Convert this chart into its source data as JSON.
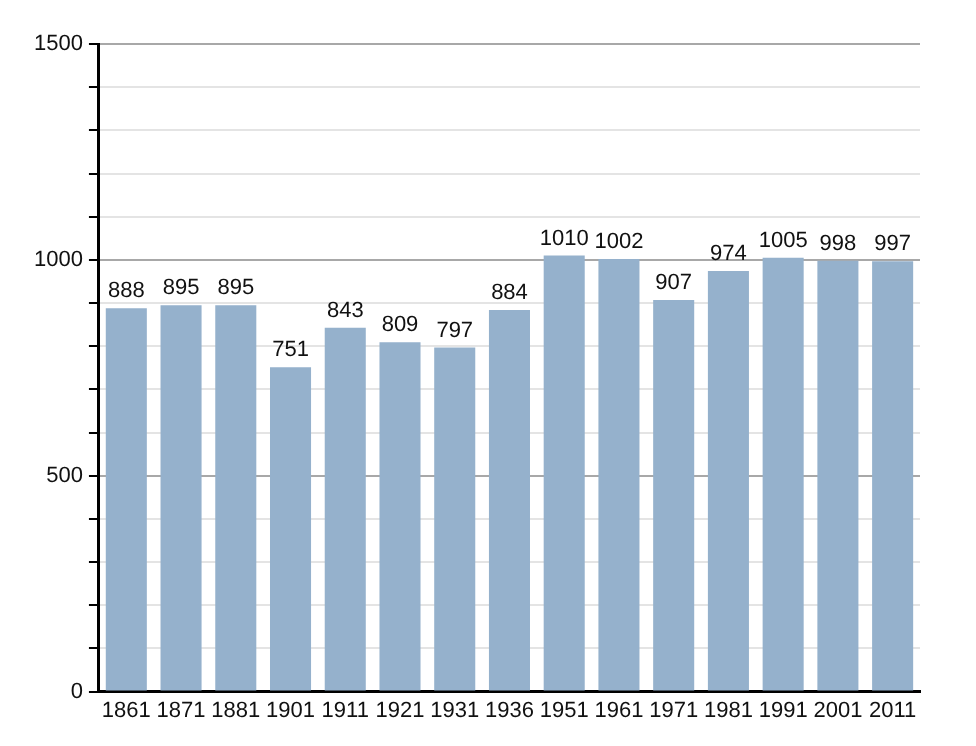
{
  "chart_data": {
    "type": "bar",
    "categories": [
      "1861",
      "1871",
      "1881",
      "1901",
      "1911",
      "1921",
      "1931",
      "1936",
      "1951",
      "1961",
      "1971",
      "1981",
      "1991",
      "2001",
      "2011"
    ],
    "values": [
      888,
      895,
      895,
      751,
      843,
      809,
      797,
      884,
      1010,
      1002,
      907,
      974,
      1005,
      998,
      997
    ],
    "color": "#95b1cc",
    "ylim": [
      0,
      1500
    ],
    "yticks": [
      0,
      {
        "value": 100,
        "label": null
      },
      {
        "value": 200,
        "label": null
      },
      {
        "value": 300,
        "label": null
      },
      {
        "value": 400,
        "label": null
      },
      500,
      {
        "value": 600,
        "label": null
      },
      {
        "value": 700,
        "label": null
      },
      {
        "value": 800,
        "label": null
      },
      {
        "value": 900,
        "label": null
      },
      1000,
      {
        "value": 1100,
        "label": null
      },
      {
        "value": 1200,
        "label": null
      },
      {
        "value": 1300,
        "label": null
      },
      {
        "value": 1400,
        "label": null
      },
      1500
    ],
    "grid": true,
    "legend": false,
    "data_labels": true
  }
}
